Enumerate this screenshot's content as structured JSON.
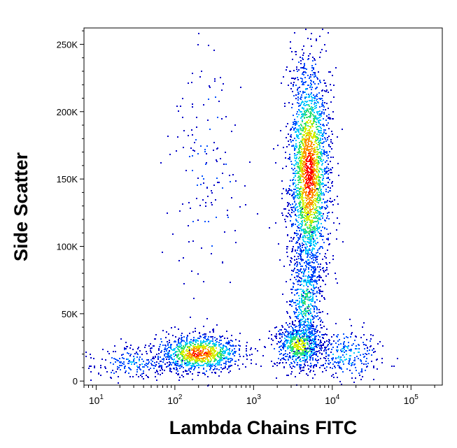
{
  "chart_data": {
    "type": "scatter",
    "subtype": "flow-cytometry-density-dot-plot",
    "xlabel": "Lambda Chains FITC",
    "ylabel": "Side Scatter",
    "x_scale": "log",
    "xlim": [
      7,
      250000
    ],
    "ylim": [
      -3000,
      262144
    ],
    "x_ticks": [
      {
        "value": 10,
        "base": "10",
        "exp": "1"
      },
      {
        "value": 100,
        "base": "10",
        "exp": "2"
      },
      {
        "value": 1000,
        "base": "10",
        "exp": "3"
      },
      {
        "value": 10000,
        "base": "10",
        "exp": "4"
      },
      {
        "value": 100000,
        "base": "10",
        "exp": "5"
      }
    ],
    "y_ticks": [
      {
        "value": 0,
        "label": "0"
      },
      {
        "value": 50000,
        "label": "50K"
      },
      {
        "value": 100000,
        "label": "100K"
      },
      {
        "value": 150000,
        "label": "150K"
      },
      {
        "value": 200000,
        "label": "200K"
      },
      {
        "value": 250000,
        "label": "250K"
      }
    ],
    "grid": false,
    "legend": "none",
    "color_scale": [
      "#0000c8",
      "#0050ff",
      "#00c8ff",
      "#30e070",
      "#d8ee00",
      "#ff9000",
      "#ff0000"
    ],
    "populations": [
      {
        "x_center": 5000,
        "y_center": 155000,
        "x_spread_decades": 0.13,
        "y_spread": 42000,
        "weight": 0.44,
        "peak_density": 1.0
      },
      {
        "x_center": 200,
        "y_center": 21000,
        "x_spread_decades": 0.28,
        "y_spread": 7000,
        "weight": 0.2,
        "peak_density": 0.95
      },
      {
        "x_center": 3800,
        "y_center": 27000,
        "x_spread_decades": 0.15,
        "y_spread": 9000,
        "weight": 0.14,
        "peak_density": 0.7
      },
      {
        "x_center": 4500,
        "y_center": 60000,
        "x_spread_decades": 0.11,
        "y_spread": 22000,
        "weight": 0.1,
        "peak_density": 0.45
      },
      {
        "x_center": 15000,
        "y_center": 20000,
        "x_spread_decades": 0.22,
        "y_spread": 9000,
        "weight": 0.05,
        "peak_density": 0.3
      },
      {
        "x_center": 30,
        "y_center": 14000,
        "x_spread_decades": 0.3,
        "y_spread": 6000,
        "weight": 0.04,
        "peak_density": 0.25
      },
      {
        "x_center": 250,
        "y_center": 160000,
        "x_spread_decades": 0.22,
        "y_spread": 55000,
        "weight": 0.03,
        "peak_density": 0.1
      }
    ]
  }
}
